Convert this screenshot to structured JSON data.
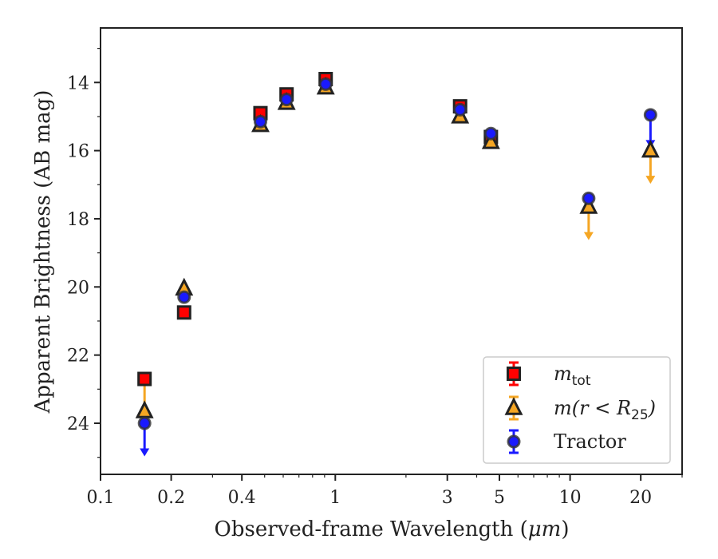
{
  "chart_data": {
    "type": "scatter",
    "xlabel_prefix": "Observed-frame Wavelength (",
    "xlabel_unit": "μm",
    "xlabel_suffix": ")",
    "ylabel": "Apparent Brightness (AB mag)",
    "x_scale": "log",
    "xlim": [
      0.1,
      30
    ],
    "ylim": [
      25.5,
      12.4
    ],
    "y_inverted": true,
    "grid": false,
    "legend_position": "lower-right",
    "x_ticks": [
      {
        "value": 0.1,
        "label": "0.1"
      },
      {
        "value": 0.2,
        "label": "0.2"
      },
      {
        "value": 0.4,
        "label": "0.4"
      },
      {
        "value": 1,
        "label": "1"
      },
      {
        "value": 3,
        "label": "3"
      },
      {
        "value": 5,
        "label": "5"
      },
      {
        "value": 10,
        "label": "10"
      },
      {
        "value": 20,
        "label": "20"
      }
    ],
    "y_ticks": [
      {
        "value": 14,
        "label": "14"
      },
      {
        "value": 16,
        "label": "16"
      },
      {
        "value": 18,
        "label": "18"
      },
      {
        "value": 20,
        "label": "20"
      },
      {
        "value": 22,
        "label": "22"
      },
      {
        "value": 24,
        "label": "24"
      }
    ],
    "series": [
      {
        "name": "m_tot",
        "legend_math": "m",
        "legend_sub": "tot",
        "marker": "square",
        "color": "#ff0000",
        "edge": "#222222",
        "points": [
          {
            "x": 0.154,
            "y": 22.7
          },
          {
            "x": 0.227,
            "y": 20.75
          },
          {
            "x": 0.48,
            "y": 14.9
          },
          {
            "x": 0.62,
            "y": 14.35
          },
          {
            "x": 0.91,
            "y": 13.9
          },
          {
            "x": 3.4,
            "y": 14.7
          },
          {
            "x": 4.6,
            "y": 15.6
          }
        ]
      },
      {
        "name": "m(r < R25)",
        "legend_math": "m(r < R",
        "legend_sub": "25",
        "legend_tail": ")",
        "marker": "triangle",
        "color": "#f5a623",
        "edge": "#222222",
        "points": [
          {
            "x": 0.154,
            "y": 23.65
          },
          {
            "x": 0.227,
            "y": 20.05
          },
          {
            "x": 0.48,
            "y": 15.25
          },
          {
            "x": 0.62,
            "y": 14.6
          },
          {
            "x": 0.91,
            "y": 14.15
          },
          {
            "x": 3.4,
            "y": 15.0
          },
          {
            "x": 4.6,
            "y": 15.75
          },
          {
            "x": 12.0,
            "y": 17.65,
            "limit_to": 18.6
          },
          {
            "x": 22.0,
            "y": 16.0,
            "limit_to": 16.95
          }
        ]
      },
      {
        "name": "Tractor",
        "marker": "circle",
        "color": "#1a1aff",
        "edge": "#333333",
        "points": [
          {
            "x": 0.154,
            "y": 24.0,
            "limit_to": 24.95
          },
          {
            "x": 0.227,
            "y": 20.3
          },
          {
            "x": 0.48,
            "y": 15.15
          },
          {
            "x": 0.62,
            "y": 14.5
          },
          {
            "x": 0.91,
            "y": 14.05
          },
          {
            "x": 3.4,
            "y": 14.8
          },
          {
            "x": 4.6,
            "y": 15.5
          },
          {
            "x": 12.0,
            "y": 17.4
          },
          {
            "x": 22.0,
            "y": 14.95,
            "limit_to": 15.9
          }
        ]
      }
    ],
    "connectors": [
      {
        "x": 0.154,
        "y1": 22.7,
        "y2": 23.65,
        "color": "#f5a623"
      }
    ],
    "legend": [
      {
        "label": "Tractor"
      }
    ]
  }
}
